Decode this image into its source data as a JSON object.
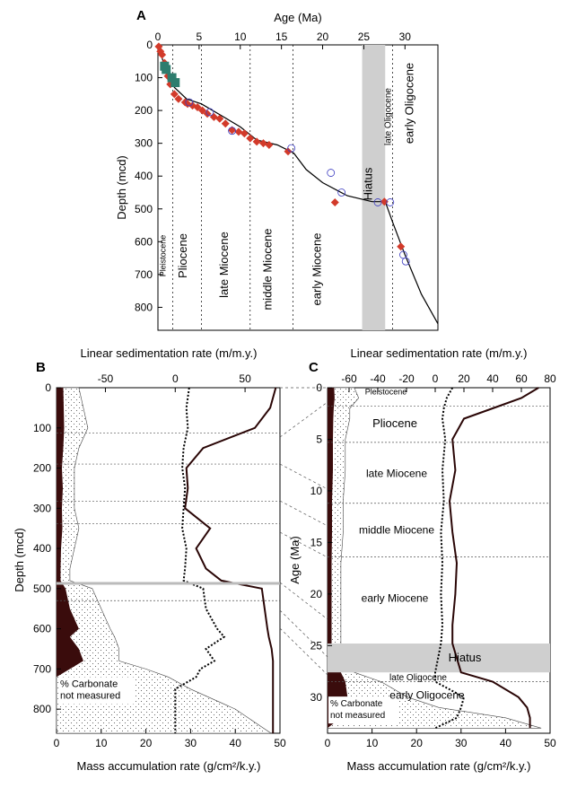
{
  "figure": {
    "panel_a_label": "A",
    "panel_b_label": "B",
    "panel_c_label": "C",
    "colors": {
      "sample_marker": "#d23a2a",
      "cluster_marker": "#2e7d6e",
      "open_marker": "#3a3ac0",
      "hiatus_fill": "#cfcfcf",
      "carbonate_fill": "#3a0c0c",
      "curve": "#2a0606"
    }
  },
  "chart_data": [
    {
      "id": "A",
      "type": "scatter",
      "title": "",
      "xlabel": "Age (Ma)",
      "ylabel": "Depth (mcd)",
      "x_ticks": [
        "0",
        "5",
        "10",
        "15",
        "20",
        "25",
        "30"
      ],
      "y_ticks": [
        "0",
        "100",
        "200",
        "300",
        "400",
        "500",
        "600",
        "700",
        "800"
      ],
      "xlim": [
        0,
        34
      ],
      "ylim": [
        0,
        870
      ],
      "epochs": [
        {
          "label": "Pleistocene",
          "x": 0.9
        },
        {
          "label": "Pliocene",
          "x": 3.5
        },
        {
          "label": "late Miocene",
          "x": 8.5
        },
        {
          "label": "middle Miocene",
          "x": 13.8
        },
        {
          "label": "early Miocene",
          "x": 19.8
        },
        {
          "label": "Hiatus",
          "x": 26.0
        },
        {
          "label": "late Oligocene",
          "x": 28.3
        },
        {
          "label": "early Oligocene",
          "x": 31.0
        }
      ],
      "boundaries": [
        1.8,
        5.3,
        11.2,
        16.4,
        28.5
      ],
      "hiatus": [
        24.8,
        27.6
      ],
      "age_model_line": {
        "x": [
          0,
          1,
          2,
          3.5,
          5.3,
          8,
          10,
          12,
          14.5,
          16.5,
          18,
          20,
          23,
          26,
          27.6,
          28.5,
          30,
          32,
          34
        ],
        "y": [
          0,
          80,
          130,
          165,
          180,
          220,
          250,
          290,
          305,
          330,
          380,
          420,
          460,
          478,
          478,
          540,
          640,
          760,
          850
        ]
      },
      "series": [
        {
          "name": "",
          "marker": "diamond",
          "x": [
            0.1,
            0.3,
            0.5,
            0.8,
            1.2,
            1.5,
            2.0,
            2.5,
            3.3,
            3.6,
            4.2,
            4.8,
            5.4,
            6.0,
            6.8,
            7.5,
            8.2,
            9.0,
            9.8,
            10.5,
            11.2,
            12.0,
            12.8,
            13.5,
            15.8,
            21.5,
            27.5,
            29.5
          ],
          "y": [
            5,
            20,
            30,
            55,
            95,
            120,
            150,
            165,
            175,
            180,
            185,
            190,
            200,
            210,
            220,
            225,
            240,
            260,
            265,
            270,
            285,
            295,
            300,
            305,
            325,
            480,
            478,
            615
          ]
        },
        {
          "name": "",
          "marker": "square",
          "x": [
            0.8,
            1.0,
            1.7,
            2.1
          ],
          "y": [
            65,
            75,
            100,
            115
          ]
        },
        {
          "name": "",
          "marker": "open-circle",
          "x": [
            3.8,
            6.3,
            9.0,
            16.2,
            21.0,
            22.3,
            26.7,
            28.2,
            29.8,
            30.1
          ],
          "y": [
            175,
            205,
            262,
            315,
            390,
            450,
            480,
            480,
            640,
            660
          ]
        }
      ]
    },
    {
      "id": "B",
      "type": "area",
      "title": "",
      "xlabel_top": "Linear sedimentation rate (m/m.y.)",
      "xlabel_bottom": "Mass accumulation rate (g/cm²/k.y.)",
      "ylabel": "Depth (mcd)",
      "top_ticks": [
        "-50",
        "0",
        "50"
      ],
      "bottom_ticks": [
        "0",
        "10",
        "20",
        "30",
        "40",
        "50"
      ],
      "y_ticks": [
        "0",
        "100",
        "200",
        "300",
        "400",
        "500",
        "600",
        "700",
        "800"
      ],
      "ylim": [
        0,
        860
      ],
      "bottom_xlim": [
        0,
        50
      ],
      "top_xlim": [
        -85,
        75
      ],
      "annotation": "% Carbonate\nnot measured",
      "boundary_depths": [
        113,
        190,
        283,
        338,
        487,
        530
      ],
      "depth": [
        0,
        50,
        100,
        150,
        200,
        250,
        300,
        350,
        400,
        450,
        480,
        500,
        550,
        600,
        620,
        650,
        680,
        700,
        720,
        750,
        800,
        860
      ],
      "mar_total": [
        5,
        6,
        7,
        5,
        4,
        4,
        4,
        5,
        4,
        3,
        3,
        8,
        10,
        12,
        13,
        14,
        14,
        20,
        25,
        30,
        40,
        48
      ],
      "mar_carbonate": [
        1.5,
        1.6,
        1.7,
        1.5,
        1.2,
        1.4,
        1.2,
        1.3,
        1.0,
        0.9,
        0.9,
        2,
        3,
        5,
        3,
        5,
        6,
        3,
        0,
        0,
        0,
        0
      ],
      "lsr": [
        72,
        68,
        57,
        20,
        8,
        9,
        7,
        25,
        15,
        22,
        33,
        62,
        64,
        66,
        67,
        69,
        70,
        70,
        70,
        70,
        70,
        70
      ],
      "lsr_dotted": [
        10,
        8,
        9,
        6,
        5,
        7,
        6,
        5,
        8,
        7,
        6,
        20,
        22,
        30,
        35,
        22,
        28,
        18,
        15,
        0,
        0,
        0
      ]
    },
    {
      "id": "C",
      "type": "area",
      "title": "",
      "xlabel_top": "Linear sedimentation rate (m/m.y.)",
      "xlabel_bottom": "Mass accumulation rate (g/cm²/k.y.)",
      "ylabel": "Age (Ma)",
      "top_ticks": [
        "-60",
        "-40",
        "-20",
        "0",
        "20",
        "40",
        "60",
        "80"
      ],
      "bottom_ticks": [
        "0",
        "10",
        "20",
        "30",
        "40",
        "50"
      ],
      "y_ticks": [
        "0",
        "5",
        "10",
        "15",
        "20",
        "25",
        "30"
      ],
      "ylim": [
        0,
        33.5
      ],
      "bottom_xlim": [
        0,
        50
      ],
      "top_xlim": [
        -75,
        80
      ],
      "epochs": [
        "Pleistocene",
        "Pliocene",
        "late Miocene",
        "middle Miocene",
        "early Miocene",
        "Hiatus",
        "late Oligocene",
        "early Oligocene"
      ],
      "annotation": "% Carbonate\nnot measured",
      "hiatus": [
        24.8,
        27.6
      ],
      "boundaries": [
        1.8,
        5.3,
        11.2,
        16.4,
        28.5
      ],
      "age": [
        0,
        1,
        2,
        3,
        5,
        8,
        11,
        14,
        17,
        20,
        23,
        24.8,
        27.6,
        28.5,
        30,
        31,
        32,
        33
      ],
      "mar_total": [
        6,
        7,
        5,
        5,
        4,
        4,
        3.5,
        3.5,
        3,
        3,
        3,
        3,
        6,
        12,
        18,
        25,
        40,
        48
      ],
      "mar_carbonate": [
        1.5,
        1.6,
        1.4,
        1.3,
        1.2,
        1.2,
        1.0,
        1.0,
        0.9,
        0.9,
        0.9,
        0.9,
        3,
        4,
        4.5,
        4,
        3,
        0
      ],
      "lsr": [
        72,
        60,
        40,
        20,
        12,
        14,
        10,
        12,
        15,
        14,
        12,
        12,
        18,
        40,
        58,
        64,
        66,
        66
      ],
      "lsr_dotted": [
        12,
        8,
        6,
        5,
        7,
        5,
        6,
        4,
        5,
        4,
        5,
        4,
        0,
        0,
        20,
        18,
        15,
        0
      ]
    }
  ]
}
